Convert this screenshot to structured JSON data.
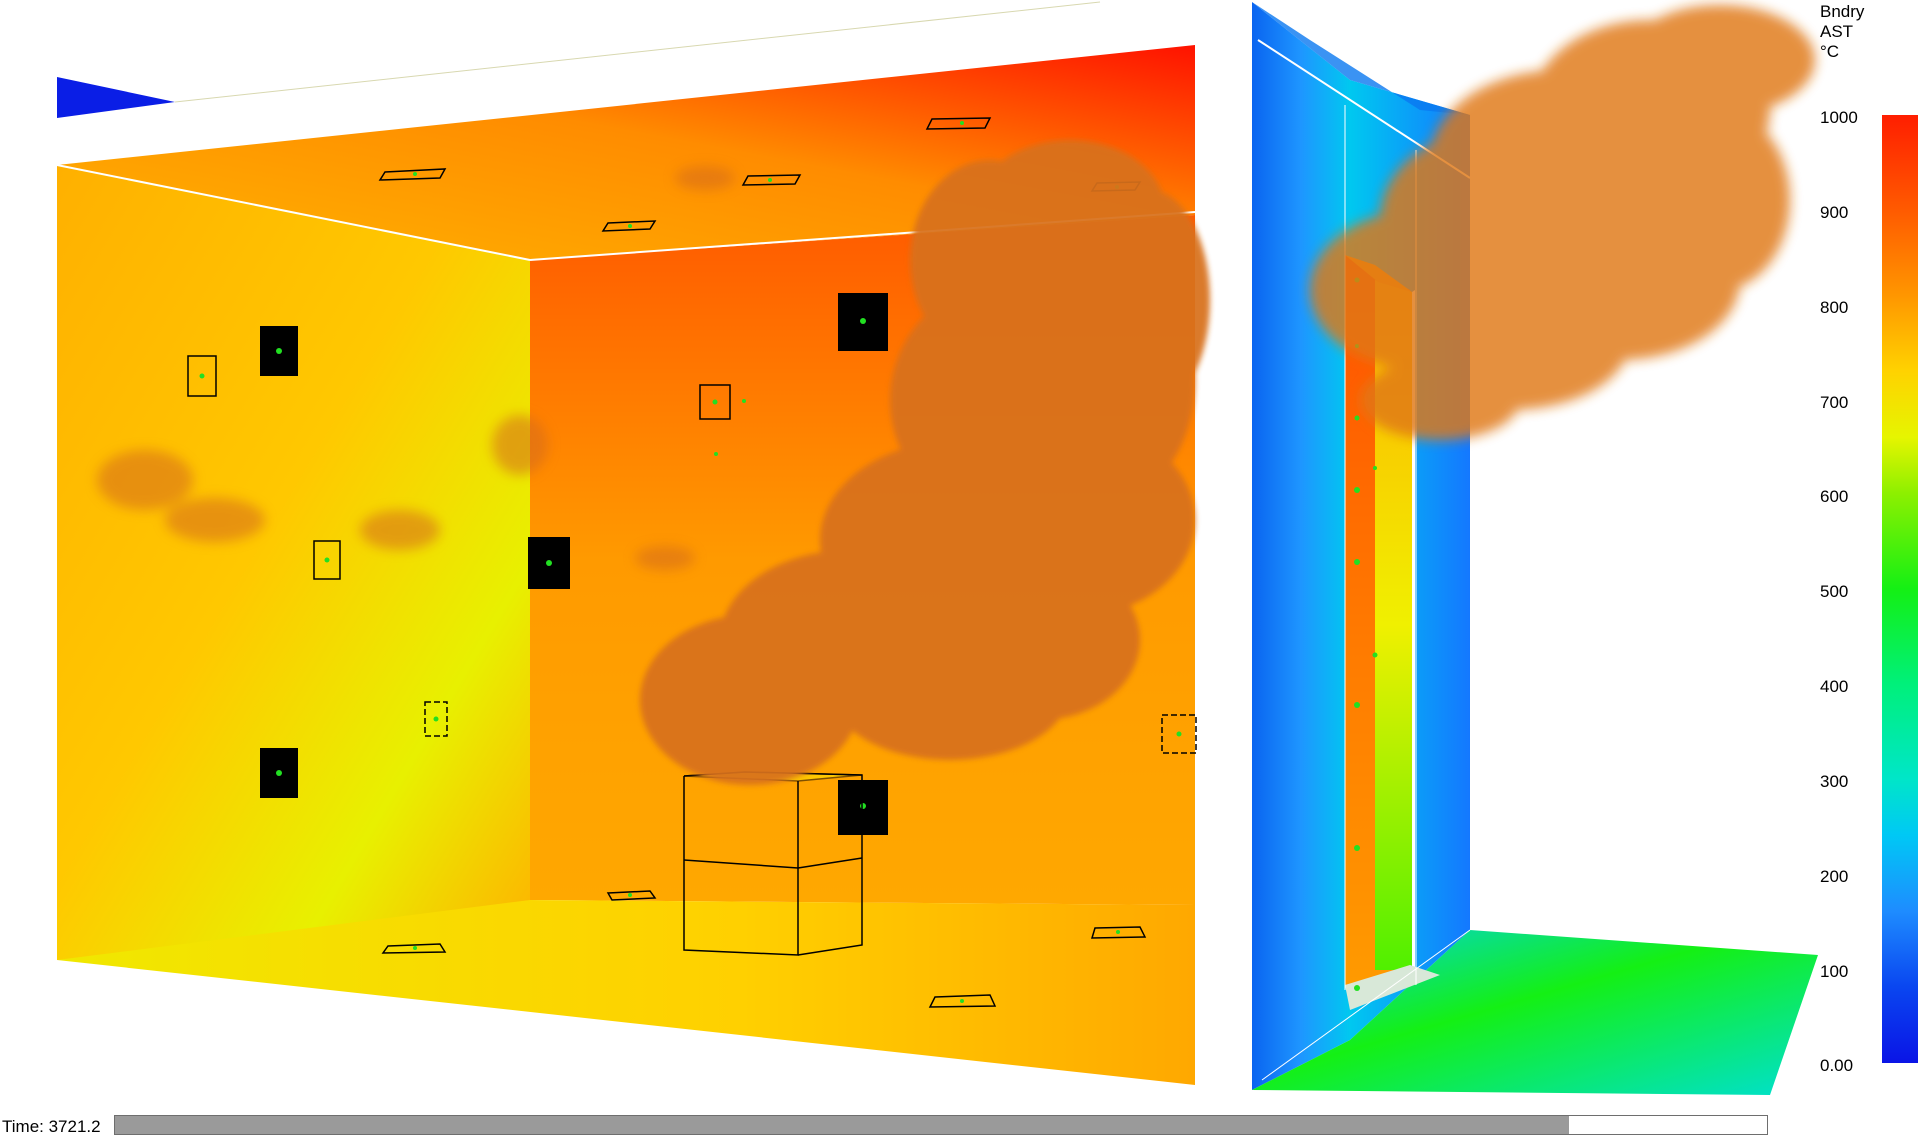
{
  "legend": {
    "title_lines": [
      "Bndry",
      "AST",
      "°C"
    ],
    "ticks": [
      "1000",
      "900",
      "800",
      "700",
      "600",
      "500",
      "400",
      "300",
      "200",
      "100",
      "0.00"
    ]
  },
  "timebar": {
    "label": "Time: 3721.2",
    "progress": 0.88
  },
  "colors": {
    "hot": "#ff1e00",
    "warm": "#ff9600",
    "mid": "#e6f500",
    "cool": "#00e6c8",
    "cold": "#0a46f0",
    "smoke": "#e07018",
    "sensor": "#000000",
    "sensor_dot": "#22e022"
  }
}
